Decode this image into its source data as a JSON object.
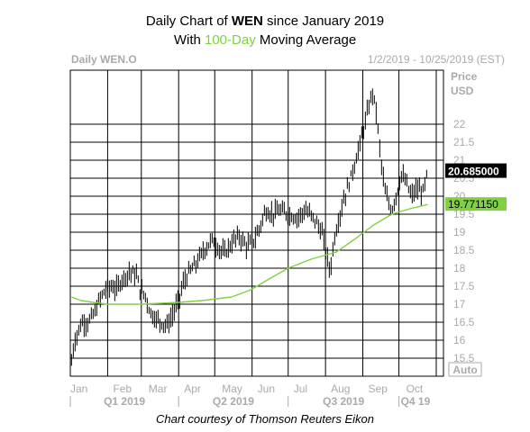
{
  "header": {
    "line1_prefix": "Daily Chart of ",
    "line1_ticker": "WEN",
    "line1_suffix": " since January 2019",
    "line2_prefix": "With ",
    "line2_highlight": "100-Day",
    "line2_suffix": " Moving Average"
  },
  "panel": {
    "symbol_label": "Daily WEN.O",
    "date_range": "1/2/2019 - 10/25/2019 (EST)",
    "price_label": "Price",
    "currency_label": "USD",
    "auto_label": "Auto"
  },
  "price_tag": {
    "text": "20.685000",
    "value": 20.685
  },
  "ma_tag": {
    "text": "19.771150",
    "value": 19.77115
  },
  "credit": "Chart courtesy of Thomson Reuters Eikon",
  "colors": {
    "ma_line": "#7fd142",
    "bars": "#000000",
    "price_tag_bg": "#000000",
    "ma_tag_bg": "#7fd142"
  },
  "chart_data": {
    "type": "line",
    "ylim": [
      15.0,
      23.5
    ],
    "y_ticks": [
      "15.5",
      "16",
      "16.5",
      "17",
      "17.5",
      "18",
      "18.5",
      "19",
      "19.5",
      "20",
      "20.5",
      "21",
      "21.5",
      "22"
    ],
    "month_labels": [
      "Jan",
      "Feb",
      "Mar",
      "Apr",
      "May",
      "Jun",
      "Jul",
      "Aug",
      "Sep",
      "Oct"
    ],
    "quarter_labels": [
      "Q1 2019",
      "Q2 2019",
      "Q3 2019",
      "Q4 19"
    ],
    "grid": true,
    "series": [
      {
        "name": "WEN.O",
        "points": [
          [
            "2019-01-02",
            15.4
          ],
          [
            "2019-01-04",
            15.9
          ],
          [
            "2019-01-08",
            16.3
          ],
          [
            "2019-01-11",
            16.5
          ],
          [
            "2019-01-16",
            16.5
          ],
          [
            "2019-01-22",
            16.8
          ],
          [
            "2019-01-25",
            17.1
          ],
          [
            "2019-01-30",
            17.4
          ],
          [
            "2019-02-04",
            17.5
          ],
          [
            "2019-02-08",
            17.4
          ],
          [
            "2019-02-13",
            17.7
          ],
          [
            "2019-02-19",
            17.9
          ],
          [
            "2019-02-25",
            17.8
          ],
          [
            "2019-02-28",
            17.4
          ],
          [
            "2019-03-05",
            17.2
          ],
          [
            "2019-03-08",
            16.8
          ],
          [
            "2019-03-13",
            16.6
          ],
          [
            "2019-03-18",
            16.5
          ],
          [
            "2019-03-22",
            16.4
          ],
          [
            "2019-03-27",
            16.7
          ],
          [
            "2019-04-01",
            17.1
          ],
          [
            "2019-04-05",
            17.6
          ],
          [
            "2019-04-10",
            17.9
          ],
          [
            "2019-04-15",
            18.1
          ],
          [
            "2019-04-22",
            18.5
          ],
          [
            "2019-04-29",
            18.8
          ],
          [
            "2019-05-03",
            18.6
          ],
          [
            "2019-05-09",
            18.4
          ],
          [
            "2019-05-15",
            18.7
          ],
          [
            "2019-05-21",
            18.9
          ],
          [
            "2019-05-28",
            18.6
          ],
          [
            "2019-06-03",
            18.8
          ],
          [
            "2019-06-07",
            19.1
          ],
          [
            "2019-06-12",
            19.6
          ],
          [
            "2019-06-18",
            19.5
          ],
          [
            "2019-06-24",
            19.6
          ],
          [
            "2019-07-01",
            19.5
          ],
          [
            "2019-07-08",
            19.4
          ],
          [
            "2019-07-15",
            19.6
          ],
          [
            "2019-07-19",
            19.5
          ],
          [
            "2019-07-24",
            19.3
          ],
          [
            "2019-07-29",
            19.0
          ],
          [
            "2019-08-01",
            18.5
          ],
          [
            "2019-08-05",
            17.9
          ],
          [
            "2019-08-08",
            18.8
          ],
          [
            "2019-08-13",
            19.5
          ],
          [
            "2019-08-16",
            19.9
          ],
          [
            "2019-08-21",
            20.4
          ],
          [
            "2019-08-26",
            21.0
          ],
          [
            "2019-08-30",
            21.5
          ],
          [
            "2019-09-04",
            22.2
          ],
          [
            "2019-09-09",
            22.9
          ],
          [
            "2019-09-12",
            22.4
          ],
          [
            "2019-09-16",
            21.0
          ],
          [
            "2019-09-20",
            20.0
          ],
          [
            "2019-09-25",
            19.6
          ],
          [
            "2019-09-30",
            20.2
          ],
          [
            "2019-10-03",
            20.6
          ],
          [
            "2019-10-08",
            20.3
          ],
          [
            "2019-10-11",
            20.0
          ],
          [
            "2019-10-16",
            20.2
          ],
          [
            "2019-10-21",
            20.1
          ],
          [
            "2019-10-25",
            20.69
          ]
        ]
      },
      {
        "name": "100-Day",
        "points": [
          [
            "2019-01-02",
            17.2
          ],
          [
            "2019-01-10",
            17.1
          ],
          [
            "2019-01-20",
            17.05
          ],
          [
            "2019-02-01",
            17.0
          ],
          [
            "2019-03-01",
            17.0
          ],
          [
            "2019-04-01",
            17.05
          ],
          [
            "2019-04-20",
            17.1
          ],
          [
            "2019-05-15",
            17.2
          ],
          [
            "2019-05-31",
            17.4
          ],
          [
            "2019-06-15",
            17.7
          ],
          [
            "2019-07-01",
            18.0
          ],
          [
            "2019-07-20",
            18.25
          ],
          [
            "2019-08-10",
            18.45
          ],
          [
            "2019-08-25",
            18.8
          ],
          [
            "2019-09-10",
            19.2
          ],
          [
            "2019-09-25",
            19.5
          ],
          [
            "2019-10-10",
            19.65
          ],
          [
            "2019-10-25",
            19.77
          ]
        ]
      }
    ]
  }
}
